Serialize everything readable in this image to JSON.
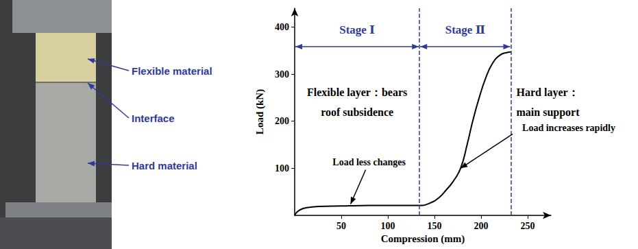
{
  "specimen_photo": {
    "labels": [
      "Flexible material",
      "Interface",
      "Hard material"
    ]
  },
  "chart_data": {
    "type": "line",
    "x": [
      0,
      2,
      6,
      12,
      25,
      50,
      80,
      110,
      134,
      145,
      155,
      163,
      170,
      178,
      185,
      191,
      198,
      205,
      212,
      220,
      228,
      232
    ],
    "values": [
      0,
      6,
      12,
      16,
      19,
      20,
      21,
      21,
      21,
      26,
      38,
      55,
      72,
      100,
      150,
      200,
      250,
      292,
      322,
      340,
      346,
      347
    ],
    "color": "#000000",
    "line_style": "solid",
    "marker": "none",
    "xlabel": "Compression (mm)",
    "ylabel": "Load (kN)",
    "xlim": [
      0,
      275
    ],
    "xticks": [
      50,
      100,
      150,
      200,
      250
    ],
    "ylim": [
      0,
      440
    ],
    "yticks": [
      100,
      200,
      300,
      400
    ],
    "grid": false,
    "stages": [
      {
        "label": "Stage Ⅰ",
        "start": 0,
        "end": 134,
        "description": "Flexible layer：bears roof subsidence"
      },
      {
        "label": "Stage Ⅱ",
        "start": 134,
        "end": 232,
        "description": "Hard layer：main support"
      }
    ],
    "annotations": [
      {
        "text": "Load less changes",
        "target": [
          60,
          24
        ]
      },
      {
        "text": "Load increases rapidly",
        "target": [
          178,
          100
        ]
      }
    ]
  }
}
